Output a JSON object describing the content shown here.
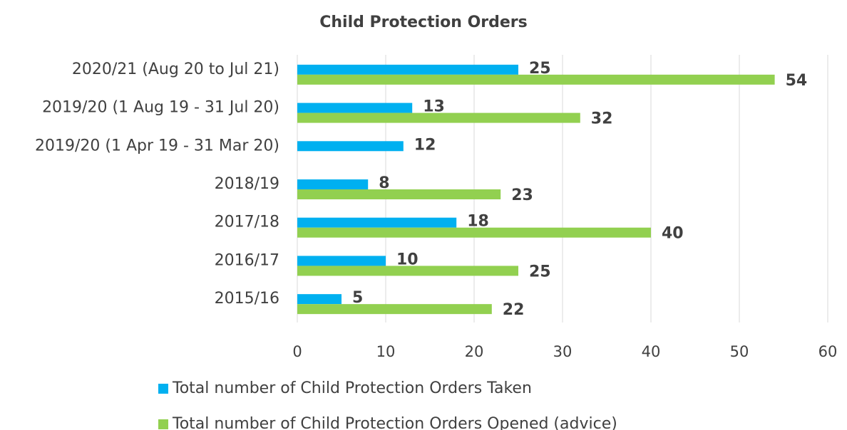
{
  "chart_data": {
    "type": "hbar",
    "title": "Child Protection Orders",
    "categories": [
      "2020/21 (Aug 20 to Jul 21)",
      "2019/20 (1 Aug 19 - 31 Jul 20)",
      "2019/20 (1 Apr 19 - 31 Mar 20)",
      "2018/19",
      "2017/18",
      "2016/17",
      "2015/16"
    ],
    "series": [
      {
        "name": "Total number of Child Protection Orders Taken",
        "color": "#00b0f0",
        "values": [
          25,
          13,
          12,
          8,
          18,
          10,
          5
        ]
      },
      {
        "name": "Total number of Child Protection Orders Opened (advice)",
        "color": "#92d050",
        "values": [
          54,
          32,
          null,
          23,
          40,
          25,
          22
        ]
      }
    ],
    "xlim": [
      0,
      60
    ],
    "xticks": [
      0,
      10,
      20,
      30,
      40,
      50,
      60
    ],
    "grid": true,
    "legend": "bottom"
  }
}
